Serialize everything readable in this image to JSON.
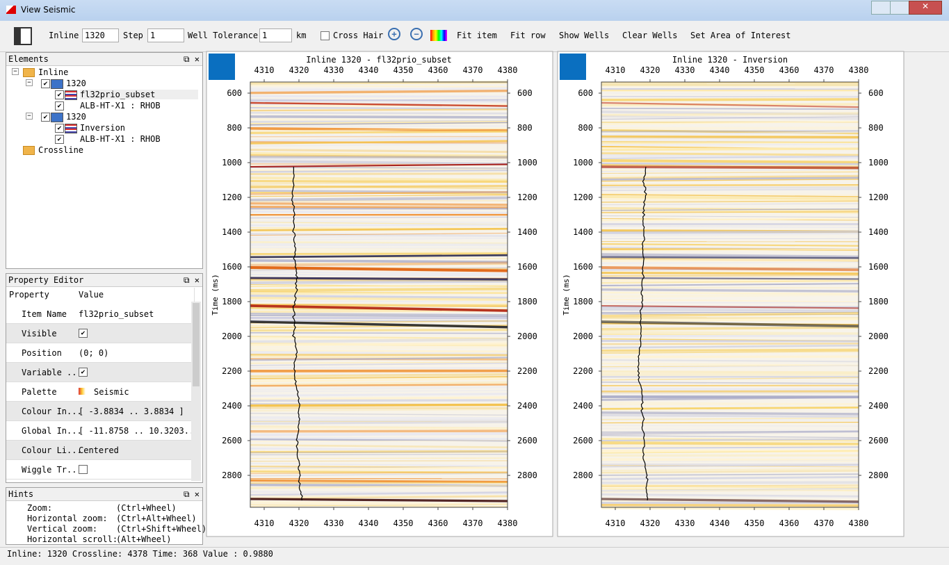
{
  "window": {
    "title": "View Seismic"
  },
  "toolbar": {
    "inline_label": "Inline",
    "inline_value": "1320",
    "step_label": "Step",
    "step_value": "1",
    "well_tolerance_label": "Well Tolerance",
    "well_tolerance_value": "1",
    "unit": "km",
    "crosshair": "Cross Hair",
    "buttons": [
      "Fit item",
      "Fit row",
      "Show Wells",
      "Clear Wells",
      "Set Area of Interest"
    ]
  },
  "elements": {
    "title": "Elements",
    "tree": [
      "Inline",
      "1320",
      "fl32prio_subset",
      "ALB-HT-X1 : RHOB",
      "1320",
      "Inversion",
      "ALB-HT-X1 : RHOB",
      "Crossline"
    ]
  },
  "property_editor": {
    "title": "Property Editor",
    "headers": [
      "Property",
      "Value"
    ],
    "rows": [
      {
        "name": "Item Name",
        "value": "fl32prio_subset"
      },
      {
        "name": "Visible",
        "checked": true
      },
      {
        "name": "Position",
        "value": "(0; 0)"
      },
      {
        "name": "Variable ...",
        "checked": true
      },
      {
        "name": "Palette",
        "value": "Seismic"
      },
      {
        "name": "Colour In...",
        "value": "[ -3.8834 .. 3.8834 ]"
      },
      {
        "name": "Global In...",
        "value": "[ -11.8758 .. 10.3203..."
      },
      {
        "name": "Colour Li...",
        "value": "Centered"
      },
      {
        "name": "Wiggle Tr...",
        "checked": false
      }
    ]
  },
  "hints": {
    "title": "Hints",
    "rows": [
      [
        "Zoom:",
        "(Ctrl+Wheel)"
      ],
      [
        "Horizontal zoom:",
        "(Ctrl+Alt+Wheel)"
      ],
      [
        "Vertical zoom:",
        "(Ctrl+Shift+Wheel)"
      ],
      [
        "Horizontal scroll:",
        "(Alt+Wheel)"
      ]
    ]
  },
  "panels": [
    {
      "title": "Inline 1320 - fl32prio_subset",
      "y_label": "Time (ms)",
      "xticks": [
        4310,
        4320,
        4330,
        4340,
        4350,
        4360,
        4370,
        4380
      ],
      "yticks": [
        600,
        800,
        1000,
        1200,
        1400,
        1600,
        1800,
        2000,
        2200,
        2400,
        2600,
        2800
      ]
    },
    {
      "title": "Inline 1320 - Inversion",
      "y_label": "Time (ms)",
      "xticks": [
        4310,
        4320,
        4330,
        4340,
        4350,
        4360,
        4370,
        4380
      ],
      "yticks": [
        600,
        800,
        1000,
        1200,
        1400,
        1600,
        1800,
        2000,
        2200,
        2400,
        2600,
        2800
      ]
    }
  ],
  "status": "Inline: 1320 Crossline: 4378 Time: 368 Value : 0.9880"
}
